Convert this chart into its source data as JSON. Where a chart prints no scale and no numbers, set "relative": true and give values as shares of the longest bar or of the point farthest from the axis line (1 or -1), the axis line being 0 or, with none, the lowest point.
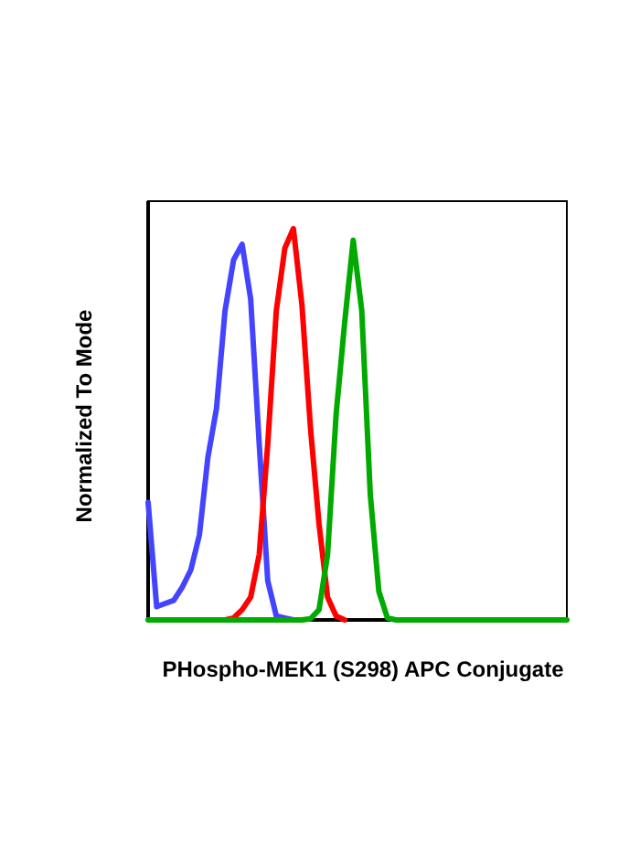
{
  "chart_data": {
    "type": "line",
    "relative": true,
    "xlabel": "PHospho-MEK1 (S298) APC Conjugate",
    "ylabel": "Normalized To Mode",
    "marker": "none",
    "line_style": "solid",
    "categories": [
      null,
      null,
      null,
      null,
      null,
      null,
      null,
      null,
      null,
      null,
      null,
      null,
      null,
      null,
      null,
      null,
      null,
      null,
      null,
      null,
      null,
      null,
      null,
      null,
      null,
      null,
      null,
      null,
      null,
      null,
      null,
      null,
      null,
      null,
      null,
      null,
      null,
      null,
      null,
      null,
      null,
      null,
      null,
      null,
      null,
      null,
      null,
      null,
      null,
      null
    ],
    "series": [
      {
        "color": "#4444ff",
        "values": [
          0.3,
          0.034,
          0.042,
          0.05,
          0.084,
          0.128,
          0.217,
          0.416,
          0.54,
          0.79,
          0.92,
          0.96,
          0.82,
          0.45,
          0.1,
          0.01,
          0.005,
          0,
          null,
          null,
          null,
          null,
          null,
          null,
          null,
          null,
          null,
          null,
          null,
          null,
          null,
          null,
          null,
          null,
          null,
          null,
          null,
          null,
          null,
          null,
          null,
          null,
          null,
          null,
          null,
          null,
          null,
          null,
          null,
          null
        ]
      },
      {
        "color": "#ff0000",
        "values": [
          null,
          null,
          null,
          null,
          null,
          null,
          null,
          null,
          null,
          0,
          0.005,
          0.026,
          0.058,
          0.167,
          0.45,
          0.79,
          0.95,
          1,
          0.805,
          0.49,
          0.245,
          0.058,
          0.01,
          0,
          null,
          null,
          null,
          null,
          null,
          null,
          null,
          null,
          null,
          null,
          null,
          null,
          null,
          null,
          null,
          null,
          null,
          null,
          null,
          null,
          null,
          null,
          null,
          null,
          null,
          null
        ]
      },
      {
        "color": "#00aa00",
        "values": [
          0,
          0,
          0,
          0,
          0,
          0,
          0,
          0,
          0,
          0,
          0,
          0,
          0,
          0,
          0,
          0,
          0,
          0,
          0,
          0.003,
          0.026,
          0.167,
          0.525,
          0.76,
          0.97,
          0.79,
          0.32,
          0.073,
          0.005,
          0,
          0,
          0,
          0,
          0,
          0,
          0,
          0,
          0,
          0,
          0,
          0,
          0,
          0,
          0,
          0,
          0,
          0,
          0,
          0,
          0
        ]
      }
    ]
  }
}
